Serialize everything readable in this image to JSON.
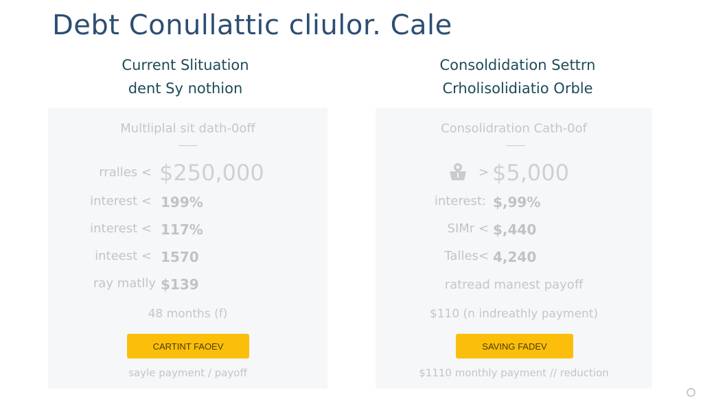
{
  "title": "Debt Conullattic cliulor. Cale",
  "left": {
    "heading_1": "Current Slituation",
    "heading_2": "dent Sy nothion",
    "card_title": "Multliplal sit dath-0off",
    "rows": [
      {
        "label": "rralles <",
        "value": "$250,000"
      },
      {
        "label": "interest <",
        "value": "199%"
      },
      {
        "label": "interest <",
        "value": "117%"
      },
      {
        "label": "inteest <",
        "value": "1570"
      },
      {
        "label": "ray matlly",
        "value": "$139"
      }
    ],
    "term": "48 months (f)",
    "button": "CARTINT FAOEV",
    "footer": "sayle payment / payoff"
  },
  "right": {
    "heading_1": "Consoldidation Settrn",
    "heading_2": "Crholisolidiatio Orble",
    "card_title": "Consolidration Cath-0of",
    "icon": "piggy-bank-icon",
    "rows": [
      {
        "label": ">",
        "value": "$5,000"
      },
      {
        "label": "interest:",
        "value": "$,99%"
      },
      {
        "label": "SIMr <",
        "value": "$,440"
      },
      {
        "label": "Talles<",
        "value": "4,240"
      }
    ],
    "payoff": "ratread manest payoff",
    "payment_note": "$110 (n indreathly payment)",
    "button": "SAVING FADEV",
    "footer": "$1110 monthly payment // reduction"
  },
  "colors": {
    "title": "#2c4e72",
    "heading": "#1e4a58",
    "button": "#fbbe0a",
    "card": "#f6f7f9"
  }
}
